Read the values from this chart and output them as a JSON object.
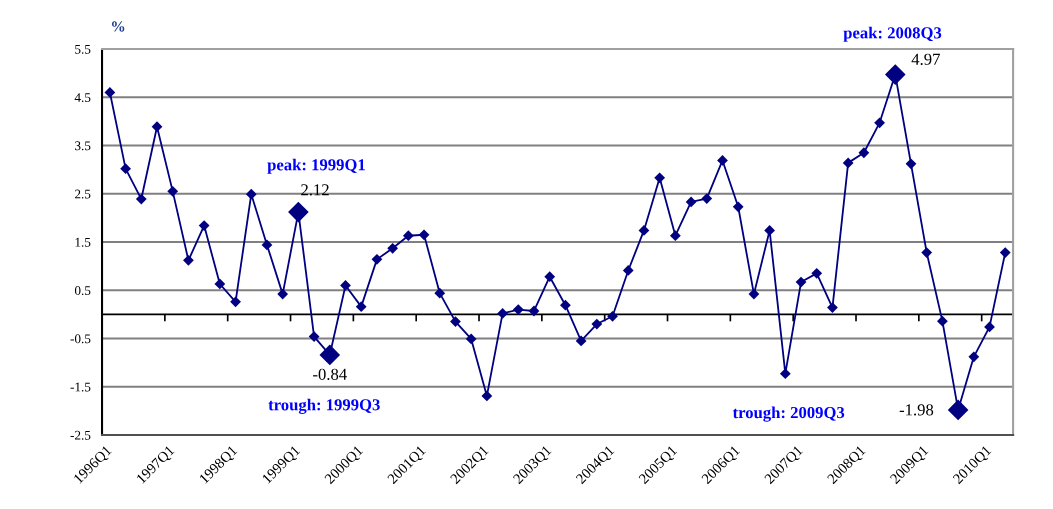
{
  "chart_data": {
    "type": "line",
    "ylabel": "%",
    "categories": [
      "1996Q1",
      null,
      null,
      null,
      "1997Q1",
      null,
      null,
      null,
      "1998Q1",
      null,
      null,
      null,
      "1999Q1",
      null,
      null,
      null,
      "2000Q1",
      null,
      null,
      null,
      "2001Q1",
      null,
      null,
      null,
      "2002Q1",
      null,
      null,
      null,
      "2003Q1",
      null,
      null,
      null,
      "2004Q1",
      null,
      null,
      null,
      "2005Q1",
      null,
      null,
      null,
      "2006Q1",
      null,
      null,
      null,
      "2007Q1",
      null,
      null,
      null,
      "2008Q1",
      null,
      null,
      null,
      "2009Q1",
      null,
      null,
      null,
      "2010Q1",
      null
    ],
    "series": [
      {
        "color": "#000080",
        "values": [
          4.6,
          3.02,
          2.39,
          3.89,
          2.55,
          1.12,
          1.84,
          0.63,
          0.26,
          2.49,
          1.44,
          0.42,
          2.12,
          -0.46,
          -0.84,
          0.6,
          0.16,
          1.14,
          1.37,
          1.63,
          1.65,
          0.44,
          -0.15,
          -0.51,
          -1.69,
          0.02,
          0.1,
          0.07,
          0.78,
          0.19,
          -0.55,
          -0.2,
          -0.04,
          0.91,
          1.74,
          2.83,
          1.63,
          2.33,
          2.4,
          3.19,
          2.23,
          0.42,
          1.74,
          -1.23,
          0.67,
          0.85,
          0.14,
          3.14,
          3.35,
          3.97,
          4.97,
          3.12,
          1.28,
          -0.14,
          -1.98,
          -0.88,
          -0.26,
          1.28
        ],
        "value_labels": [
          null,
          null,
          null,
          null,
          null,
          null,
          null,
          null,
          null,
          null,
          null,
          null,
          "2.12",
          null,
          "-0.84",
          null,
          null,
          null,
          null,
          null,
          null,
          null,
          null,
          null,
          null,
          null,
          null,
          null,
          null,
          null,
          null,
          null,
          null,
          null,
          null,
          null,
          null,
          null,
          null,
          null,
          null,
          null,
          null,
          null,
          null,
          null,
          null,
          null,
          null,
          null,
          "4.97",
          null,
          null,
          null,
          "-1.98",
          null,
          null,
          null
        ]
      }
    ],
    "annotations": [
      "peak: 1999Q1",
      "trough: 1999Q3",
      "peak: 2008Q3",
      "trough: 2009Q3"
    ],
    "ylim": [
      -2.5,
      5.5
    ],
    "yticks": [
      -2.5,
      -1.5,
      -0.5,
      0.5,
      1.5,
      2.5,
      3.5,
      4.5,
      5.5
    ],
    "grid": "y",
    "marker": "diamond",
    "line_style": "solid"
  }
}
